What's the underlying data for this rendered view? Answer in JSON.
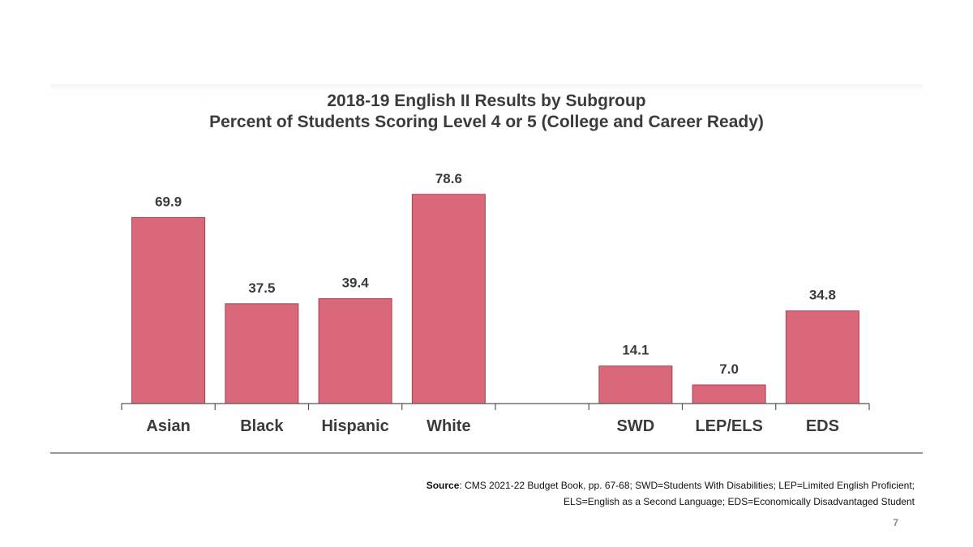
{
  "chart_data": {
    "type": "bar",
    "title": "2018-19 English II Results by Subgroup",
    "subtitle": "Percent of Students Scoring Level 4 or 5 (College and Career Ready)",
    "categories": [
      "Asian",
      "Black",
      "Hispanic",
      "White",
      "",
      "SWD",
      "LEP/ELS",
      "EDS"
    ],
    "values": [
      69.9,
      37.5,
      39.4,
      78.6,
      null,
      14.1,
      7.0,
      34.8
    ],
    "value_labels": [
      "69.9",
      "37.5",
      "39.4",
      "78.6",
      "",
      "14.1",
      "7.0",
      "34.8"
    ],
    "xlabel": "",
    "ylabel": "",
    "ylim": [
      0,
      100
    ],
    "grid": false,
    "bar_color": "#d9687a",
    "bar_edge_color": "#a8404f"
  },
  "source": {
    "label": "Source",
    "text": ": CMS 2021-22 Budget Book, pp. 67-68; SWD=Students With Disabilities; LEP=Limited English Proficient;",
    "text2": "ELS=English as a Second Language; EDS=Economically Disadvantaged Student"
  },
  "page_number": "7"
}
